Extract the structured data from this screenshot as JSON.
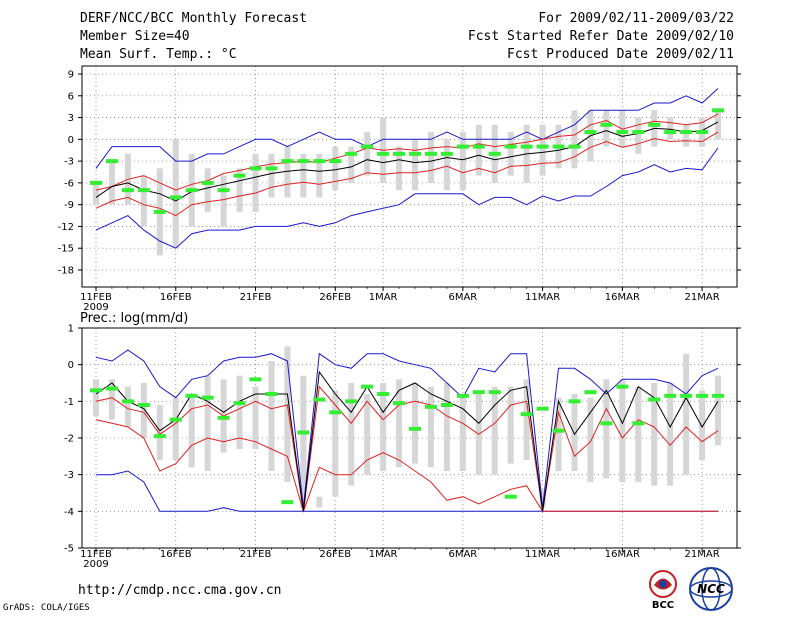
{
  "header": {
    "title": "DERF/NCC/BCC Monthly Forecast",
    "member_size": "Member Size=40",
    "variable": "Mean Surf. Temp.: °C",
    "period": "For 2009/02/11-2009/03/22",
    "started": "Fcst Started Refer Date 2009/02/10",
    "produced": "Fcst Produced Date 2009/02/11"
  },
  "footer": {
    "url": "http://cmdp.ncc.cma.gov.cn",
    "credit": "GrADS: COLA/IGES"
  },
  "logos": {
    "bcc": "BCC",
    "ncc": "NCC"
  },
  "colors": {
    "box": "#d6d6d6",
    "green": "#33ee33",
    "red": "#dd2222",
    "blue": "#1a1acc",
    "median": "#000000"
  },
  "chart_data": [
    {
      "type": "box-plume",
      "title": "Mean Surf. Temp.: °C",
      "ylim": [
        -20,
        10
      ],
      "yticks": [
        9,
        6,
        3,
        0,
        -3,
        -6,
        -9,
        -12,
        -15,
        -18
      ],
      "xticks": [
        {
          "day": 0,
          "label": "11FEB",
          "sub": "2009"
        },
        {
          "day": 5,
          "label": "16FEB"
        },
        {
          "day": 10,
          "label": "21FEB"
        },
        {
          "day": 15,
          "label": "26FEB"
        },
        {
          "day": 18,
          "label": "1MAR"
        },
        {
          "day": 23,
          "label": "6MAR"
        },
        {
          "day": 28,
          "label": "11MAR"
        },
        {
          "day": 33,
          "label": "16MAR"
        },
        {
          "day": 38,
          "label": "21MAR"
        }
      ],
      "series": {
        "box_hi": [
          -6,
          -3,
          -2,
          -5,
          -4,
          0,
          -2,
          -4,
          -5,
          -4,
          -2,
          -2,
          -1,
          -2,
          -2,
          -1,
          -1,
          1,
          3,
          -1,
          0,
          1,
          0,
          1,
          2,
          2,
          1,
          2,
          2,
          2,
          4,
          4,
          4,
          4,
          3,
          4,
          3,
          2,
          3,
          4
        ],
        "box_lo": [
          -9,
          -9,
          -9,
          -12,
          -16,
          -15,
          -12,
          -10,
          -12,
          -10,
          -10,
          -8,
          -8,
          -8,
          -8,
          -7,
          -6,
          -5,
          -6,
          -7,
          -7,
          -6,
          -7,
          -7,
          -5,
          -6,
          -5,
          -6,
          -5,
          -4,
          -4,
          -3,
          -1,
          -1,
          -2,
          -1,
          0,
          -1,
          -1,
          0
        ],
        "ensemble": [
          -6,
          -3,
          -7,
          -7,
          -10,
          -8,
          -7,
          -6,
          -7,
          -5,
          -4,
          -4,
          -3,
          -3,
          -3,
          -3,
          -2,
          -1,
          -2,
          -2,
          -2,
          -2,
          -2,
          -1,
          -1,
          -2,
          -1,
          -1,
          -1,
          -1,
          -1,
          1,
          2,
          1,
          1,
          2,
          1,
          1,
          1,
          4
        ],
        "median": [
          -8,
          -6.5,
          -6,
          -7,
          -7.5,
          -8.5,
          -7.2,
          -6.7,
          -6.2,
          -5.7,
          -5.2,
          -4.7,
          -4.4,
          -4.2,
          -4.4,
          -4.2,
          -3.8,
          -2.8,
          -3.2,
          -2.8,
          -3.2,
          -3,
          -2.5,
          -2.8,
          -2.2,
          -2.8,
          -2.4,
          -2,
          -1.8,
          -1.5,
          -1,
          0.5,
          1.2,
          0.4,
          0.8,
          1.5,
          1.4,
          1,
          1.2,
          2.4
        ],
        "red_hi": [
          -7,
          -6.5,
          -5.5,
          -5,
          -6,
          -7,
          -6.2,
          -5.7,
          -4.7,
          -4.3,
          -3.8,
          -3.4,
          -3.2,
          -3,
          -3.2,
          -2.6,
          -2,
          -1.2,
          -1.5,
          -1.3,
          -1.5,
          -1.2,
          -1,
          -1.2,
          -0.6,
          -1,
          -0.7,
          -0.4,
          0,
          0.4,
          0.6,
          2,
          2.6,
          1.4,
          2,
          2.5,
          2.3,
          2,
          2.3,
          3.5
        ],
        "red_lo": [
          -9.5,
          -8.5,
          -8,
          -9,
          -9.5,
          -10.5,
          -9,
          -8.6,
          -8.3,
          -7.8,
          -7.4,
          -6.6,
          -6.2,
          -5.9,
          -6.2,
          -5.8,
          -5.4,
          -4.6,
          -4.8,
          -4.6,
          -4.6,
          -4.3,
          -3.7,
          -4.6,
          -4,
          -4.6,
          -3.7,
          -3.6,
          -3.3,
          -3.2,
          -2.4,
          -1.1,
          -0.3,
          -1.1,
          -0.6,
          0.1,
          -0.3,
          -0.2,
          -0.3,
          1
        ],
        "blue_hi": [
          -4,
          -1,
          -1,
          -1,
          -1,
          -3,
          -3,
          -2,
          -2,
          -1,
          0,
          0,
          -1,
          0,
          1,
          0,
          0,
          -1,
          0,
          0,
          0,
          0,
          1,
          0,
          0,
          0,
          0,
          1,
          0,
          1,
          2,
          4,
          4,
          4,
          4,
          5,
          5,
          6,
          5,
          7
        ],
        "blue_lo": [
          -12.5,
          -11.5,
          -10.5,
          -12.5,
          -14,
          -15,
          -13,
          -12.5,
          -12.5,
          -12.5,
          -12,
          -12,
          -12,
          -11.5,
          -12,
          -11.5,
          -10.5,
          -10,
          -9.5,
          -9,
          -7.5,
          -7.5,
          -7.5,
          -7.5,
          -9,
          -8,
          -8,
          -9,
          -7.8,
          -8.5,
          -7.8,
          -7.8,
          -6.5,
          -5,
          -4.5,
          -3.5,
          -4.5,
          -4,
          -4.2,
          -1.2
        ]
      }
    },
    {
      "type": "box-plume",
      "title": "Prec.: log(mm/d)",
      "ylim": [
        -5,
        1
      ],
      "yticks": [
        1,
        0,
        -1,
        -2,
        -3,
        -4,
        -5
      ],
      "xticks": [
        {
          "day": 0,
          "label": "11FEB",
          "sub": "2009"
        },
        {
          "day": 5,
          "label": "16FEB"
        },
        {
          "day": 10,
          "label": "21FEB"
        },
        {
          "day": 15,
          "label": "26FEB"
        },
        {
          "day": 18,
          "label": "1MAR"
        },
        {
          "day": 23,
          "label": "6MAR"
        },
        {
          "day": 28,
          "label": "11MAR"
        },
        {
          "day": 33,
          "label": "16MAR"
        },
        {
          "day": 38,
          "label": "21MAR"
        }
      ],
      "series": {
        "box_hi": [
          -0.4,
          -0.4,
          -0.6,
          -0.5,
          -1.1,
          -0.9,
          -0.8,
          -0.3,
          -0.4,
          -0.3,
          -0.6,
          0.1,
          0.5,
          -0.3,
          -3.6,
          -0.7,
          -0.5,
          -0.8,
          -0.5,
          -0.4,
          -0.5,
          -0.6,
          -0.5,
          -0.8,
          -0.7,
          -0.6,
          -0.6,
          -0.4,
          -3.4,
          -0.9,
          -0.8,
          -0.9,
          -0.4,
          -0.4,
          -0.6,
          -0.5,
          -0.5,
          0.3,
          -0.7,
          -0.3
        ],
        "box_lo": [
          -1.4,
          -1.5,
          -1.7,
          -2.0,
          -2.6,
          -2.6,
          -2.8,
          -2.9,
          -2.4,
          -2.3,
          -2.3,
          -2.9,
          -3.2,
          -3.9,
          -3.9,
          -3.6,
          -3.3,
          -3.0,
          -2.9,
          -2.8,
          -2.7,
          -2.8,
          -2.9,
          -2.9,
          -3.0,
          -3.0,
          -2.7,
          -2.6,
          -3.9,
          -2.9,
          -2.9,
          -3.2,
          -3.1,
          -3.2,
          -3.2,
          -3.3,
          -3.3,
          -3.0,
          -2.6,
          -2.2
        ],
        "ensemble": [
          -0.7,
          -0.65,
          -1.0,
          -1.1,
          -1.95,
          -1.5,
          -0.85,
          -0.9,
          -1.45,
          -1.05,
          -0.4,
          -0.8,
          -3.75,
          -1.85,
          -0.95,
          -1.3,
          -1.0,
          -0.6,
          -0.8,
          -1.05,
          -1.75,
          -1.15,
          -1.1,
          -0.85,
          -0.75,
          -0.75,
          -3.6,
          -1.35,
          -1.2,
          -1.8,
          -1.0,
          -0.75,
          -1.6,
          -0.6,
          -1.6,
          -0.95,
          -0.85,
          -0.85,
          -0.85,
          -0.85
        ],
        "median": [
          -0.8,
          -0.5,
          -1.0,
          -1.2,
          -1.8,
          -1.5,
          -0.8,
          -1.0,
          -1.3,
          -1.0,
          -0.8,
          -0.8,
          -0.8,
          -4.0,
          -0.2,
          -0.8,
          -1.3,
          -0.6,
          -1.3,
          -0.7,
          -0.5,
          -0.8,
          -1.0,
          -1.2,
          -1.6,
          -1.1,
          -0.7,
          -0.6,
          -4.0,
          -1.0,
          -1.9,
          -1.3,
          -0.7,
          -1.6,
          -0.6,
          -0.9,
          -1.7,
          -0.9,
          -1.7,
          -1.0
        ],
        "red_hi": [
          -1.0,
          -0.9,
          -1.2,
          -1.3,
          -1.9,
          -1.6,
          -1.2,
          -1.1,
          -1.4,
          -1.2,
          -1.0,
          -1.2,
          -1.1,
          -4.0,
          -0.6,
          -1.1,
          -1.6,
          -1.0,
          -1.5,
          -1.1,
          -1.0,
          -1.1,
          -1.4,
          -1.6,
          -1.9,
          -1.6,
          -1.1,
          -1.0,
          -4.0,
          -1.3,
          -2.5,
          -2.1,
          -1.2,
          -2.0,
          -1.5,
          -1.7,
          -2.2,
          -1.7,
          -2.1,
          -1.8
        ],
        "red_lo": [
          -1.5,
          -1.6,
          -1.7,
          -2.0,
          -2.9,
          -2.7,
          -2.2,
          -2.0,
          -2.1,
          -2.0,
          -2.1,
          -2.3,
          -2.5,
          -4.0,
          -2.8,
          -3.0,
          -3.0,
          -2.6,
          -2.4,
          -2.6,
          -2.9,
          -3.2,
          -3.7,
          -3.6,
          -3.8,
          -3.6,
          -3.4,
          -3.3,
          -4.0,
          -4.0,
          -4.0,
          -4.0,
          -4.0,
          -4.0,
          -4.0,
          -4.0,
          -4.0,
          -4.0,
          -4.0,
          -4.0
        ],
        "blue_hi": [
          0.2,
          0.1,
          0.4,
          0.1,
          -0.6,
          -0.9,
          -0.4,
          -0.3,
          0.1,
          0.2,
          0.2,
          0.3,
          0.1,
          -3.9,
          0.3,
          0.0,
          -0.1,
          0.3,
          0.3,
          0.1,
          0.0,
          -0.1,
          -0.5,
          -0.9,
          -0.1,
          -0.2,
          0.3,
          0.3,
          -3.9,
          -0.1,
          -0.1,
          -0.4,
          -0.8,
          -0.4,
          -0.4,
          -0.4,
          -0.5,
          -0.8,
          -0.3,
          -0.1
        ],
        "blue_lo": [
          -3.0,
          -3.0,
          -2.9,
          -3.2,
          -4.0,
          -4.0,
          -4.0,
          -4.0,
          -3.9,
          -4.0,
          -4.0,
          -4.0,
          -4.0,
          -4.0,
          -4.0,
          -4.0,
          -4.0,
          -4.0,
          -4.0,
          -4.0,
          -4.0,
          -4.0,
          -4.0,
          -4.0,
          -4.0,
          -4.0,
          -4.0,
          -4.0,
          -4.0,
          -4.0,
          -4.0,
          -4.0,
          -4.0,
          -4.0,
          -4.0,
          -4.0,
          -4.0,
          -4.0,
          -4.0,
          -4.0
        ]
      }
    }
  ]
}
